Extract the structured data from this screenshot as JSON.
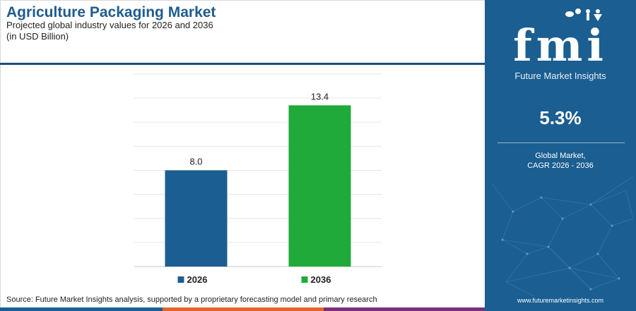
{
  "header": {
    "title": "Agriculture Packaging Market",
    "subtitle_line1": "Projected global industry values for 2026 and 2036",
    "subtitle_line2": "(in USD Billion)"
  },
  "sidebar": {
    "logo_text": "fmi",
    "logo_tagline": "Future Market Insights",
    "cagr_value": "5.3%",
    "cagr_label_line1": "Global Market,",
    "cagr_label_line2": "CAGR 2026 - 2036",
    "website": "www.futuremarketinsights.com"
  },
  "footer": {
    "source": "Source: Future Market Insights analysis, supported by a proprietary forecasting model and primary research"
  },
  "colors": {
    "bar_2026": "#1b5e91",
    "bar_2036": "#1faa3a",
    "sidebar_bg": "#1b5e91",
    "title": "#1f5c8e",
    "bottom_bar": [
      "#1b5e91",
      "#e8632b",
      "#7b2f7d",
      "#1b5e91"
    ]
  },
  "chart_data": {
    "type": "bar",
    "categories": [
      "2026",
      "2036"
    ],
    "values": [
      8.0,
      13.4
    ],
    "data_labels": [
      "8.0",
      "13.4"
    ],
    "colors": [
      "#1b5e91",
      "#1faa3a"
    ],
    "legend": [
      "2026",
      "2036"
    ],
    "legend_position": "bottom",
    "ylim": [
      0,
      16
    ],
    "grid": true,
    "xlabel": "",
    "ylabel": ""
  }
}
